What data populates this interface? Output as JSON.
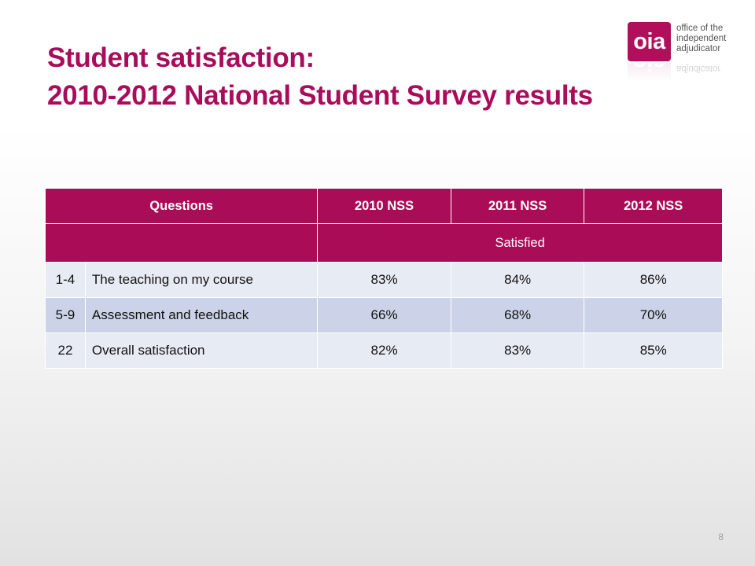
{
  "title": {
    "line1": "Student satisfaction:",
    "line2": "2010-2012 National Student Survey results"
  },
  "logo": {
    "mark": "oia",
    "text_line1": "office of the",
    "text_line2": "independent",
    "text_line3": "adjudicator",
    "color": "#b10f5c"
  },
  "table": {
    "headers": [
      "Questions",
      "2010 NSS",
      "2011 NSS",
      "2012 NSS"
    ],
    "subheader": "Satisfied",
    "rows": [
      {
        "num": "1-4",
        "question": "The teaching on my course",
        "values": [
          "83%",
          "84%",
          "86%"
        ]
      },
      {
        "num": "5-9",
        "question": "Assessment and feedback",
        "values": [
          "66%",
          "68%",
          "70%"
        ]
      },
      {
        "num": "22",
        "question": "Overall satisfaction",
        "values": [
          "82%",
          "83%",
          "85%"
        ]
      }
    ],
    "header_color": "#ab0c57"
  },
  "page_number": "8"
}
